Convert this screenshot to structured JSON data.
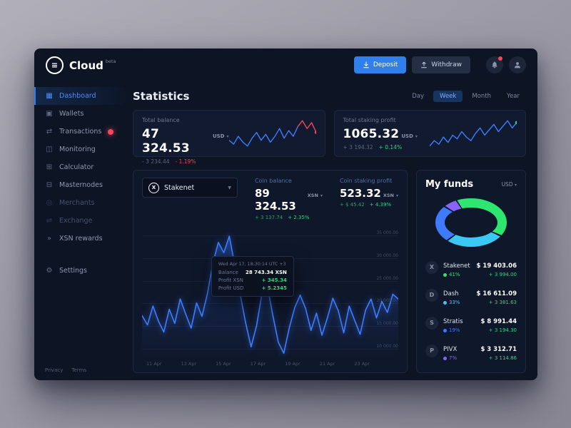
{
  "app": {
    "name": "Cloud",
    "badge": "beta"
  },
  "header": {
    "deposit": "Deposit",
    "withdraw": "Withdraw"
  },
  "sidebar": {
    "items": [
      {
        "label": "Dashboard",
        "active": true
      },
      {
        "label": "Wallets"
      },
      {
        "label": "Transactions",
        "notification": true
      },
      {
        "label": "Monitoring"
      },
      {
        "label": "Calculator"
      },
      {
        "label": "Masternodes"
      },
      {
        "label": "Merchants",
        "disabled": true
      },
      {
        "label": "Exchange",
        "disabled": true
      },
      {
        "label": "XSN rewards"
      },
      {
        "label": "Settings"
      }
    ],
    "footer_links": [
      "Privacy",
      "Terms"
    ]
  },
  "statistics": {
    "title": "Statistics",
    "tabs": [
      "Day",
      "Week",
      "Month",
      "Year"
    ],
    "active_tab": "Week"
  },
  "stat_cards": [
    {
      "label": "Total balance",
      "value": "47 324.53",
      "unit": "USD",
      "change_abs": "- 3 234.44",
      "change_pct": "- 1.19%"
    },
    {
      "label": "Total staking profit",
      "value": "1065.32",
      "unit": "USD",
      "change_abs": "+ 3 194.32",
      "change_pct": "+ 0.14%"
    }
  ],
  "coin_panel": {
    "selected_coin": "Stakenet",
    "metrics": [
      {
        "label": "Coin balance",
        "value": "89 324.53",
        "unit": "XSN",
        "change_abs": "+ 3 137.74",
        "change_pct": "+ 2.35%"
      },
      {
        "label": "Coin staking profit",
        "value": "523.32",
        "unit": "XSN",
        "change_abs": "+ $ 45.42",
        "change_pct": "+ 4.39%"
      }
    ],
    "tooltip": {
      "timestamp": "Wed Apr 17, 18:30:14 UTC +3",
      "rows": [
        {
          "label": "Balance",
          "value": "28 743.34 XSN",
          "positive": false
        },
        {
          "label": "Profit XSN",
          "value": "+ 345.34",
          "positive": true
        },
        {
          "label": "Profit USD",
          "value": "+ 5.2345",
          "positive": true
        }
      ]
    }
  },
  "my_funds": {
    "title": "My funds",
    "currency": "USD",
    "funds": [
      {
        "name": "Stakenet",
        "symbol": "X",
        "percent": "41%",
        "value": "$ 19 403.06",
        "change": "+ 3 994.00",
        "color": "#2ee56f"
      },
      {
        "name": "Dash",
        "symbol": "D",
        "percent": "33%",
        "value": "$ 16 611.09",
        "change": "+ 3 381.63",
        "color": "#3ac9f2"
      },
      {
        "name": "Stratis",
        "symbol": "S",
        "percent": "19%",
        "value": "$ 8 991.44",
        "change": "+ 3 194.30",
        "color": "#3e7bfa"
      },
      {
        "name": "PIVX",
        "symbol": "P",
        "percent": "7%",
        "value": "$ 3 312.71",
        "change": "+ 3 114.86",
        "color": "#8a63f8"
      }
    ]
  },
  "chart_data": [
    {
      "type": "line",
      "title": "Coin balance (XSN) over time",
      "x_labels": [
        "11 Apr",
        "13 Apr",
        "15 Apr",
        "17 Apr",
        "19 Apr",
        "21 Apr",
        "23 Apr"
      ],
      "y_tick_labels": [
        "35 000.00",
        "30 000.00",
        "25 000.00",
        "20 000.00",
        "15 000.00",
        "10 000.00"
      ],
      "ylim": [
        10000,
        35000
      ],
      "grid": true,
      "series": [
        {
          "name": "Coin balance XSN",
          "values": [
            24100,
            22900,
            25300,
            23400,
            22000,
            24900,
            23100,
            26200,
            24300,
            22500,
            25700,
            24000,
            26900,
            30800,
            33400,
            32100,
            34200,
            30600,
            26800,
            23200,
            20100,
            22800,
            26900,
            27800,
            24100,
            20700,
            19300,
            22500,
            25100,
            26700,
            25000,
            22200,
            24400,
            21600,
            23800,
            26300,
            24700,
            21900,
            25300,
            23500,
            21700,
            24800,
            26200,
            23800,
            25900,
            24500,
            26800,
            26200
          ]
        }
      ]
    },
    {
      "type": "line",
      "title": "Total balance sparkline",
      "values": [
        46,
        44,
        48,
        45,
        43,
        47,
        50,
        46,
        49,
        45,
        48,
        52,
        47,
        51,
        48,
        53,
        56,
        52,
        55,
        50
      ],
      "end_segment": "down-red"
    },
    {
      "type": "line",
      "title": "Total staking profit sparkline",
      "values": [
        40,
        43,
        41,
        45,
        42,
        46,
        44,
        48,
        45,
        43,
        47,
        50,
        46,
        49,
        52,
        48,
        51,
        54,
        50,
        53
      ],
      "end_segment": "up-green"
    },
    {
      "type": "pie",
      "title": "My funds allocation",
      "labels": [
        "Stakenet",
        "Dash",
        "Stratis",
        "PIVX"
      ],
      "values": [
        41,
        33,
        19,
        7
      ]
    }
  ]
}
